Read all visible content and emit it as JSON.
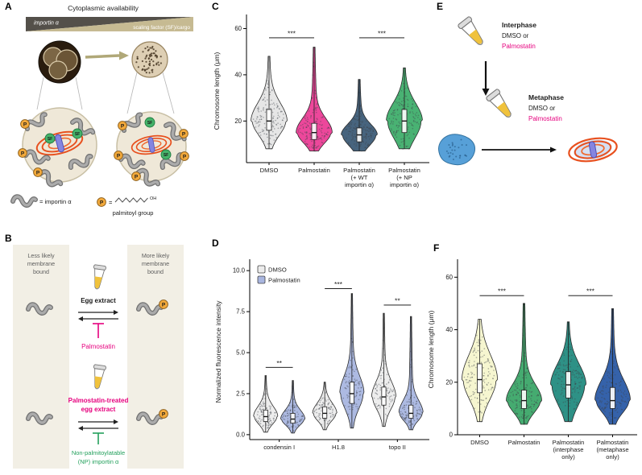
{
  "figure": {
    "panel_letters": {
      "A": "A",
      "B": "B",
      "C": "C",
      "D": "D",
      "E": "E",
      "F": "F"
    }
  },
  "icons": {
    "tube-icon": "microcentrifuge tube with yellow egg extract",
    "importin-squiggle-icon": "importin alpha gray squiggle",
    "p-badge-icon": "palmitoyl group badge P",
    "sf-badge-icon": "scaling factor cargo badge SF",
    "embryo-early-icon": "early embryo (large cells)",
    "embryo-late-icon": "late embryo (many small cells)",
    "cell-icon": "cell with spindle and chromosomes",
    "spindle-icon": "metaphase spindle with chromosome",
    "cell-blob-icon": "interphase cell",
    "arrow-icon": "arrow",
    "inhibition-icon": "T-bar inhibition symbol"
  },
  "colors": {
    "magenta_text": "#e6007e",
    "green_text": "#23a05c",
    "spindle_orange": "#e8501e",
    "chromosome_blue": "#8585e0",
    "tube_liquid": "#f0c23c",
    "importin_gray": "#9a9a9a",
    "palmitoyl_orange": "#f2a93b",
    "sf_green": "#45b36a",
    "beige_column": "#f2efe5"
  },
  "panelA": {
    "title": "Cytoplasmic availability",
    "wedge_left_label": "importin α",
    "wedge_right_label": "scaling factor (SF)/cargo",
    "p_badge": "P",
    "sf_badge": "SF",
    "legend_importin": "= importin α",
    "legend_equals": "=",
    "oh_label": "OH",
    "legend_palmitoyl": "palmitoyl group"
  },
  "panelB": {
    "left_header": [
      "Less likely",
      "membrane",
      "bound"
    ],
    "right_header": [
      "More likely",
      "membrane",
      "bound"
    ],
    "egg_extract": "Egg extract",
    "palmostatin": "Palmostatin",
    "treated_line1": "Palmostatin-treated",
    "treated_line2": "egg extract",
    "np_line1": "Non-palmitoylatable",
    "np_line2": "(NP) importin α"
  },
  "panelE": {
    "interphase": "Interphase",
    "dmso_or_1": "DMSO or",
    "palmostatin_1": "Palmostatin",
    "metaphase": "Metaphase",
    "dmso_or_2": "DMSO or",
    "palmostatin_2": "Palmostatin"
  },
  "chart_data": [
    {
      "id": "C",
      "type": "violin",
      "ylabel": "Chromosome length (μm)",
      "ylim": [
        2,
        64
      ],
      "yticks": [
        20,
        40,
        60
      ],
      "ytick_labels": [
        "20",
        "40",
        "60"
      ],
      "categories": [
        {
          "label": [
            "DMSO"
          ],
          "color": "#e5e5e5",
          "stats": {
            "min": 8,
            "q1": 16,
            "median": 20,
            "q3": 25,
            "max": 48
          }
        },
        {
          "label": [
            "Palmostatin"
          ],
          "color": "#ec3d96",
          "stats": {
            "min": 7,
            "q1": 12,
            "median": 15,
            "q3": 19,
            "max": 52
          }
        },
        {
          "label": [
            "Palmostatin",
            "(+ WT",
            "importin α)"
          ],
          "color": "#3d5c77",
          "stats": {
            "min": 7,
            "q1": 11,
            "median": 14,
            "q3": 17,
            "max": 38
          }
        },
        {
          "label": [
            "Palmostatin",
            "(+ NP",
            "importin α)"
          ],
          "color": "#3fae6c",
          "stats": {
            "min": 8,
            "q1": 15,
            "median": 20,
            "q3": 25,
            "max": 43
          }
        }
      ],
      "significance": [
        {
          "a": 0,
          "b": 1,
          "y": 56,
          "label": "***"
        },
        {
          "a": 2,
          "b": 3,
          "y": 56,
          "label": "***"
        }
      ]
    },
    {
      "id": "D",
      "type": "violin-grouped",
      "ylabel": "Normalized fluorescence intensity",
      "ylim": [
        -0.3,
        10.4
      ],
      "yticks": [
        0,
        2.5,
        5,
        7.5,
        10
      ],
      "ytick_labels": [
        "0.0",
        "2.5",
        "5.0",
        "7.5",
        "10.0"
      ],
      "legend": [
        {
          "label": "DMSO",
          "color": "#ececec"
        },
        {
          "label": "Palmostatin",
          "color": "#a9b6e0"
        }
      ],
      "series_colors": [
        "#ececec",
        "#a9b6e0"
      ],
      "categories": [
        {
          "label": [
            "condensin I"
          ],
          "violins": [
            {
              "min": 0.15,
              "q1": 0.8,
              "median": 1.1,
              "q3": 1.5,
              "max": 3.6
            },
            {
              "min": 0.1,
              "q1": 0.7,
              "median": 0.95,
              "q3": 1.3,
              "max": 3.3
            }
          ],
          "sig": {
            "y": 4.1,
            "label": "**"
          }
        },
        {
          "label": [
            "H1.8"
          ],
          "violins": [
            {
              "min": 0.3,
              "q1": 1.0,
              "median": 1.3,
              "q3": 1.7,
              "max": 3.2
            },
            {
              "min": 0.4,
              "q1": 1.9,
              "median": 2.5,
              "q3": 3.2,
              "max": 8.6
            }
          ],
          "sig": {
            "y": 8.9,
            "label": "***"
          }
        },
        {
          "label": [
            "topo II"
          ],
          "violins": [
            {
              "min": 0.5,
              "q1": 1.8,
              "median": 2.3,
              "q3": 2.9,
              "max": 7.4
            },
            {
              "min": 0.3,
              "q1": 1.0,
              "median": 1.3,
              "q3": 1.8,
              "max": 7.2
            }
          ],
          "sig": {
            "y": 7.9,
            "label": "**"
          }
        }
      ]
    },
    {
      "id": "F",
      "type": "violin",
      "ylabel": "Chromosome length (μm)",
      "ylim": [
        0,
        65
      ],
      "yticks": [
        0,
        20,
        40,
        60
      ],
      "ytick_labels": [
        "0",
        "20",
        "40",
        "60"
      ],
      "categories": [
        {
          "label": [
            "DMSO"
          ],
          "color": "#f5f5cd",
          "stats": {
            "min": 5,
            "q1": 16,
            "median": 21,
            "q3": 27,
            "max": 44
          }
        },
        {
          "label": [
            "Palmostatin"
          ],
          "color": "#3ba768",
          "stats": {
            "min": 4,
            "q1": 10,
            "median": 13,
            "q3": 17,
            "max": 50
          }
        },
        {
          "label": [
            "Palmostatin",
            "(interphase",
            "only)"
          ],
          "color": "#238b80",
          "stats": {
            "min": 5,
            "q1": 14,
            "median": 19,
            "q3": 24,
            "max": 43
          }
        },
        {
          "label": [
            "Palmostatin",
            "(metaphase",
            "only)"
          ],
          "color": "#2a5aa5",
          "stats": {
            "min": 4,
            "q1": 10,
            "median": 13,
            "q3": 18,
            "max": 48
          }
        }
      ],
      "significance": [
        {
          "a": 0,
          "b": 1,
          "y": 53,
          "label": "***"
        },
        {
          "a": 2,
          "b": 3,
          "y": 53,
          "label": "***"
        }
      ]
    }
  ]
}
